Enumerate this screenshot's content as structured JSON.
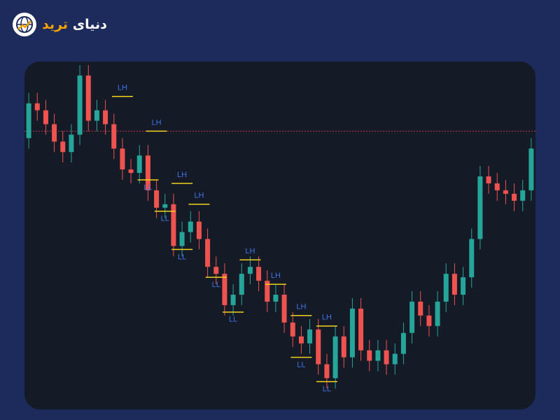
{
  "logo": {
    "word1": "دنیای",
    "word2": "ترید"
  },
  "chart_data": {
    "type": "candlestick",
    "ylim": [
      0,
      100
    ],
    "up_color": "#26a69a",
    "down_color": "#ef5350",
    "hline": {
      "value": 80,
      "color": "#c0394a"
    },
    "open": [
      78,
      88,
      86,
      82,
      77,
      74,
      79,
      96,
      83,
      86,
      82,
      75,
      69,
      68,
      73,
      63,
      58,
      59,
      47,
      51,
      54,
      49,
      41,
      39,
      30,
      33,
      39,
      41,
      37,
      31,
      33,
      25,
      21,
      19,
      23,
      13,
      9,
      21,
      15,
      29,
      17,
      14,
      17,
      13,
      16,
      22,
      31,
      27,
      24,
      31,
      39,
      33,
      38,
      49,
      67,
      65,
      63,
      62,
      60,
      63
    ],
    "high": [
      91,
      91,
      89,
      85,
      80,
      82,
      99,
      99,
      89,
      89,
      85,
      78,
      72,
      76,
      76,
      66,
      62,
      62,
      54,
      57,
      57,
      52,
      44,
      42,
      36,
      42,
      44,
      44,
      40,
      36,
      36,
      28,
      24,
      26,
      26,
      16,
      24,
      24,
      32,
      32,
      20,
      20,
      20,
      19,
      25,
      34,
      34,
      30,
      34,
      42,
      42,
      41,
      52,
      70,
      70,
      68,
      66,
      65,
      66,
      78
    ],
    "low": [
      75,
      83,
      79,
      74,
      71,
      71,
      76,
      80,
      80,
      79,
      72,
      66,
      65,
      65,
      60,
      55,
      55,
      44,
      44,
      48,
      46,
      38,
      36,
      27,
      27,
      30,
      36,
      34,
      28,
      28,
      22,
      18,
      16,
      16,
      10,
      6,
      6,
      12,
      12,
      14,
      11,
      11,
      10,
      10,
      13,
      19,
      24,
      21,
      21,
      28,
      30,
      30,
      35,
      46,
      62,
      60,
      59,
      57,
      57,
      60
    ],
    "close": [
      88,
      86,
      82,
      77,
      74,
      79,
      96,
      83,
      86,
      82,
      75,
      69,
      68,
      73,
      63,
      58,
      59,
      47,
      51,
      54,
      49,
      41,
      39,
      30,
      33,
      39,
      41,
      37,
      31,
      33,
      25,
      21,
      19,
      23,
      13,
      9,
      21,
      15,
      29,
      17,
      14,
      17,
      13,
      16,
      22,
      31,
      27,
      24,
      31,
      39,
      33,
      38,
      49,
      67,
      65,
      63,
      62,
      60,
      63,
      75
    ],
    "annotations": [
      {
        "label": "LH",
        "index": 11,
        "value": 90
      },
      {
        "label": "LH",
        "index": 15,
        "value": 80
      },
      {
        "label": "LH",
        "index": 18,
        "value": 65
      },
      {
        "label": "LH",
        "index": 20,
        "value": 59
      },
      {
        "label": "LH",
        "index": 26,
        "value": 43
      },
      {
        "label": "LH",
        "index": 29,
        "value": 36
      },
      {
        "label": "LH",
        "index": 32,
        "value": 27
      },
      {
        "label": "LH",
        "index": 35,
        "value": 24
      },
      {
        "label": "LL",
        "index": 14,
        "value": 66
      },
      {
        "label": "LL",
        "index": 16,
        "value": 57
      },
      {
        "label": "LL",
        "index": 18,
        "value": 46
      },
      {
        "label": "LL",
        "index": 22,
        "value": 38
      },
      {
        "label": "LL",
        "index": 24,
        "value": 28
      },
      {
        "label": "LL",
        "index": 32,
        "value": 15
      },
      {
        "label": "LL",
        "index": 35,
        "value": 8
      }
    ]
  }
}
